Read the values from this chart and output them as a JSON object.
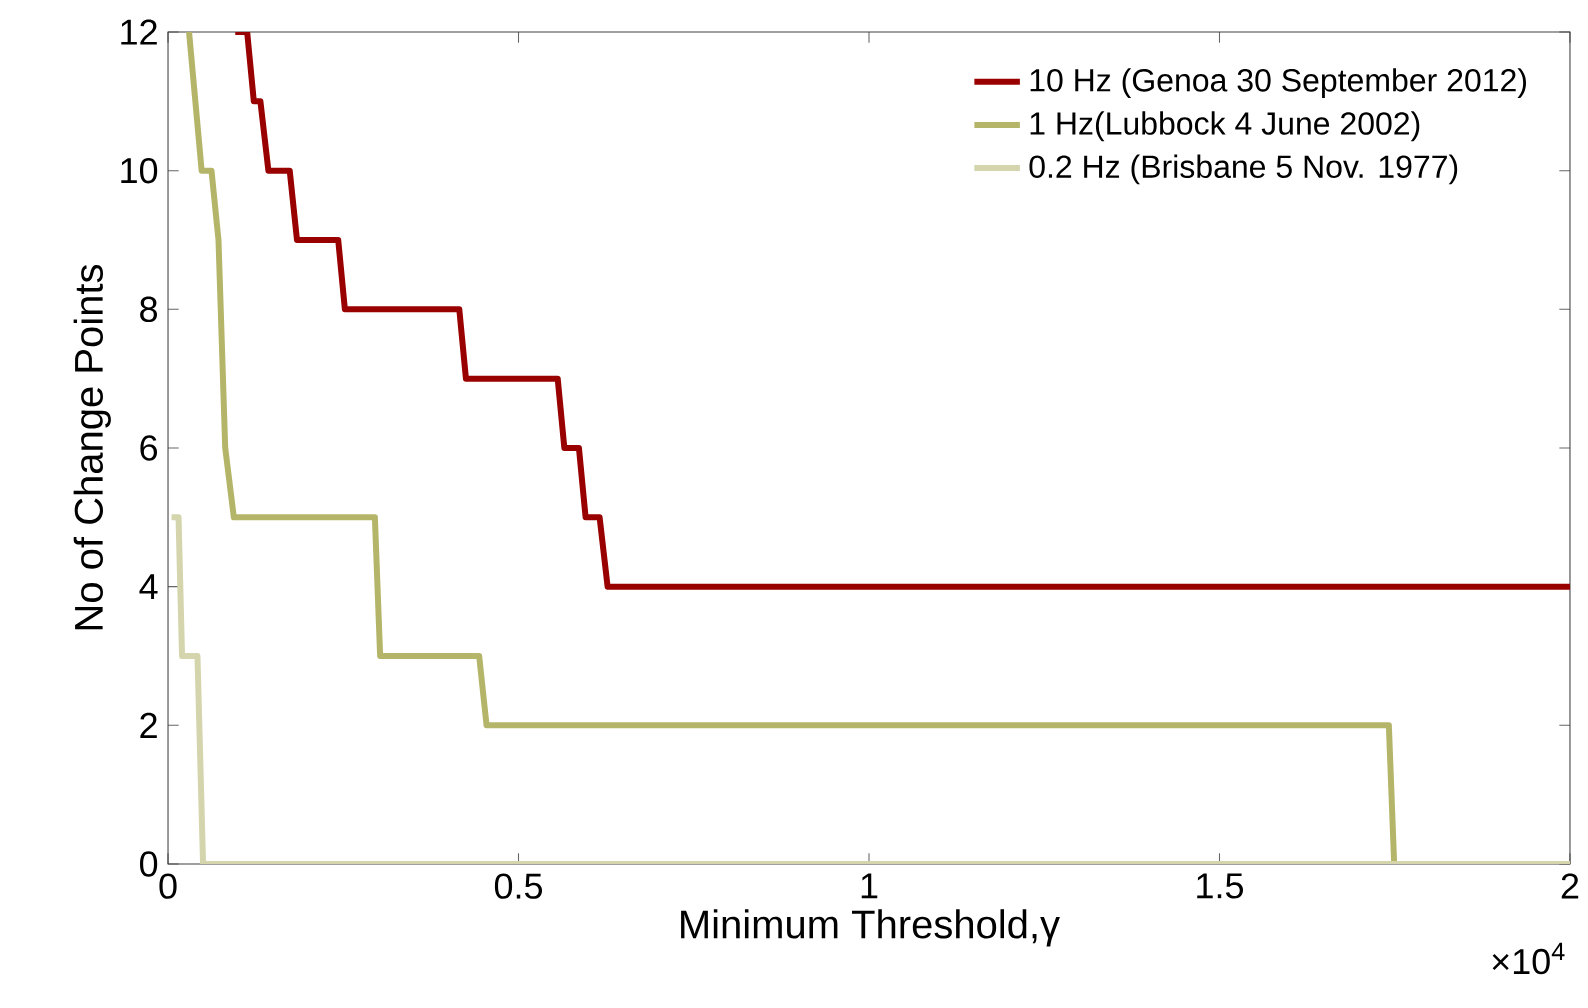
{
  "chart_data": {
    "type": "line",
    "xlabel": "Minimum Threshold,γ",
    "ylabel": "No of Change Points",
    "xlim": [
      0,
      2
    ],
    "ylim": [
      0,
      12
    ],
    "xticks": [
      0,
      0.5,
      1,
      1.5,
      2
    ],
    "yticks": [
      0,
      2,
      4,
      6,
      8,
      10,
      12
    ],
    "annotations": [
      "×10$^{4}$"
    ],
    "legend": "top right",
    "grid": false,
    "marker": "none",
    "line_style": "solid",
    "series": [
      {
        "name": "10 Hz (Genoa 30 September 2012)",
        "color": "#990000",
        "x": [
          0.0959,
          0.1129,
          0.1224,
          0.1318,
          0.1432,
          0.1736,
          0.184,
          0.2428,
          0.2523,
          0.4155,
          0.425,
          0.5559,
          0.5654,
          0.5862,
          0.5957,
          0.6157,
          0.6271,
          2
        ],
        "values": [
          12,
          12,
          11,
          11,
          10,
          10,
          9,
          9,
          8,
          8,
          7,
          7,
          6,
          6,
          5,
          5,
          4,
          4
        ]
      },
      {
        "name": "1 Hz(Lubbock 4 June 2002)",
        "color": "#b5b56a",
        "x": [
          0.03,
          0.048,
          0.062,
          0.072,
          0.0816,
          0.0939,
          0.2951,
          0.3026,
          0.4439,
          0.4544,
          1.7416,
          1.7492,
          2
        ],
        "values": [
          12,
          10,
          10,
          9,
          6,
          5,
          5,
          3,
          3,
          2,
          2,
          0,
          0
        ]
      },
      {
        "name": "0.2 Hz (Brisbane 5 Nov. 1977)",
        "color": "#d4d4ad",
        "x": [
          0.005,
          0.015,
          0.02,
          0.042,
          0.05,
          2
        ],
        "values": [
          5,
          5,
          3,
          3,
          0,
          0
        ]
      }
    ]
  }
}
